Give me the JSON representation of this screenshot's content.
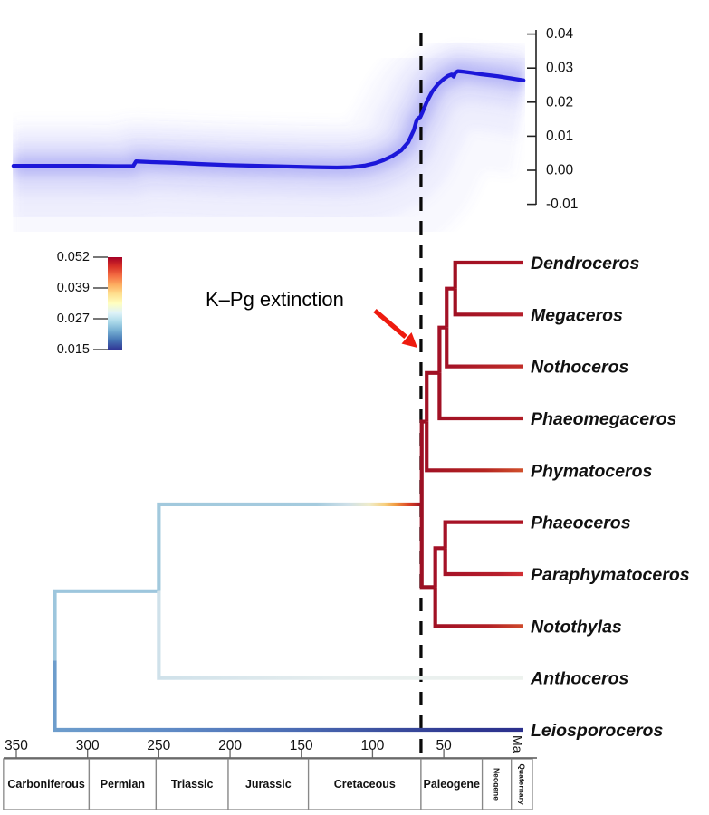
{
  "annotations": {
    "kpg_label": "K–Pg extinction",
    "kpg_time_ma": 66,
    "ma_unit_label": "Ma"
  },
  "chart_data": [
    {
      "type": "area",
      "id": "rate_through_time",
      "title": "",
      "x_unit": "Ma",
      "x": [
        352,
        330,
        300,
        280,
        268,
        266,
        255,
        240,
        220,
        200,
        180,
        160,
        140,
        125,
        115,
        105,
        98,
        92,
        86,
        80,
        75,
        71,
        69,
        67.5,
        66.5,
        65,
        62,
        58,
        54,
        50,
        47,
        44.5,
        43,
        42,
        40,
        36,
        30,
        24,
        18,
        12,
        6,
        0,
        -6
      ],
      "rate": [
        0.0013,
        0.0013,
        0.0013,
        0.0012,
        0.0012,
        0.0026,
        0.0024,
        0.0022,
        0.0018,
        0.0015,
        0.0013,
        0.0011,
        0.0009,
        0.0008,
        0.0009,
        0.0014,
        0.0021,
        0.003,
        0.0042,
        0.0058,
        0.0082,
        0.0118,
        0.0148,
        0.0154,
        0.0156,
        0.017,
        0.02,
        0.0232,
        0.0253,
        0.0268,
        0.0277,
        0.0281,
        0.0275,
        0.0286,
        0.0291,
        0.0289,
        0.0286,
        0.0282,
        0.0279,
        0.0276,
        0.0272,
        0.0268,
        0.0264
      ],
      "yticks": [
        "0.04",
        "0.03",
        "0.02",
        "0.01",
        "0.00",
        "-0.01"
      ],
      "ylim": [
        -0.01,
        0.04
      ],
      "line_color": "#1c17d9",
      "cloud_color": "#7d7df0"
    },
    {
      "type": "tree",
      "id": "phylogeny",
      "tips": [
        {
          "name": "Dendroceros"
        },
        {
          "name": "Megaceros"
        },
        {
          "name": "Nothoceros"
        },
        {
          "name": "Phaeomegaceros"
        },
        {
          "name": "Phymatoceros"
        },
        {
          "name": "Phaeoceros"
        },
        {
          "name": "Paraphymatoceros"
        },
        {
          "name": "Notothylas"
        },
        {
          "name": "Anthoceros"
        },
        {
          "name": "Leiosporoceros"
        }
      ],
      "nodes": [
        {
          "id": "root",
          "t": 323,
          "children": [
            "n8",
            "Leiosporoceros"
          ]
        },
        {
          "id": "n8",
          "t": 250,
          "children": [
            "n5",
            "Anthoceros"
          ]
        },
        {
          "id": "n5",
          "t": 65.5,
          "children": [
            "n4",
            "n7"
          ]
        },
        {
          "id": "n4",
          "t": 62,
          "children": [
            "n3",
            "Phymatoceros"
          ]
        },
        {
          "id": "n3",
          "t": 53,
          "children": [
            "n2",
            "Phaeomegaceros"
          ]
        },
        {
          "id": "n2",
          "t": 48,
          "children": [
            "n1",
            "Nothoceros"
          ]
        },
        {
          "id": "n1",
          "t": 42,
          "children": [
            "Dendroceros",
            "Megaceros"
          ]
        },
        {
          "id": "n7",
          "t": 56,
          "children": [
            "n6",
            "Notothylas"
          ]
        },
        {
          "id": "n6",
          "t": 49,
          "children": [
            "Phaeoceros",
            "Paraphymatoceros"
          ]
        }
      ],
      "edge_colors": {
        "root>n8": [
          [
            "#9dc6dd",
            0
          ]
        ],
        "root>Leiosporoceros": [
          [
            "#6d9dcc",
            0
          ],
          [
            "#5f8ac5",
            0.25
          ],
          [
            "#4c6db4",
            0.5
          ],
          [
            "#3c509f",
            0.7
          ],
          [
            "#303b93",
            0.85
          ],
          [
            "#2b2f8c",
            1
          ]
        ],
        "n8>n5": [
          [
            "#a2c9dd",
            0
          ],
          [
            "#a5cbde",
            0.6
          ],
          [
            "#cfe0e8",
            0.72
          ],
          [
            "#efeccb",
            0.8
          ],
          [
            "#f7cf7e",
            0.86
          ],
          [
            "#f09b42",
            0.9
          ],
          [
            "#dc4527",
            0.95
          ],
          [
            "#9c1023",
            1
          ]
        ],
        "n8>Anthoceros": [
          [
            "#cfe1ea",
            0
          ],
          [
            "#e7eeee",
            0.5
          ],
          [
            "#edf2ee",
            1
          ]
        ],
        "n5>n4": [
          [
            "#9c1023",
            0
          ]
        ],
        "n5>n7": [
          [
            "#9c1023",
            0
          ]
        ],
        "n4>n3": [
          [
            "#a11124",
            0
          ]
        ],
        "n4>Phymatoceros": [
          [
            "#a11124",
            0
          ],
          [
            "#b52420",
            0.6
          ],
          [
            "#d1512c",
            1
          ]
        ],
        "n3>n2": [
          [
            "#a31126",
            0
          ]
        ],
        "n3>Phaeomegaceros": [
          [
            "#a11124",
            0
          ],
          [
            "#b01d26",
            1
          ]
        ],
        "n2>n1": [
          [
            "#a31126",
            0
          ]
        ],
        "n2>Nothoceros": [
          [
            "#a31126",
            0
          ],
          [
            "#c22e28",
            1
          ]
        ],
        "n1>Dendroceros": [
          [
            "#a01022",
            0
          ],
          [
            "#ad1526",
            1
          ]
        ],
        "n1>Megaceros": [
          [
            "#a01022",
            0
          ],
          [
            "#b51f2b",
            1
          ]
        ],
        "n7>n6": [
          [
            "#a31126",
            0
          ]
        ],
        "n7>Notothylas": [
          [
            "#a11124",
            0
          ],
          [
            "#b22026",
            0.6
          ],
          [
            "#cf4a2b",
            1
          ]
        ],
        "n6>Phaeoceros": [
          [
            "#a51227",
            0
          ],
          [
            "#ad1322",
            1
          ]
        ],
        "n6>Paraphymatoceros": [
          [
            "#a51227",
            0
          ],
          [
            "#b81f2c",
            0.7
          ],
          [
            "#d23034",
            1
          ]
        ]
      },
      "legend": {
        "ticks": [
          "0.052",
          "0.039",
          "0.027",
          "0.015"
        ],
        "colormap_top_to_bottom": [
          "#a50026",
          "#d73027",
          "#f46d43",
          "#fdae61",
          "#fee090",
          "#ffffbf",
          "#e0f3f8",
          "#abd9e9",
          "#74add1",
          "#4575b4",
          "#313695"
        ]
      }
    },
    {
      "type": "table",
      "id": "geologic_timescale",
      "axis_ticks": [
        350,
        300,
        250,
        200,
        150,
        100,
        50
      ],
      "unit": "Ma",
      "periods": [
        {
          "name": "Carboniferous",
          "from": 359,
          "to": 298.9,
          "rotated": false
        },
        {
          "name": "Permian",
          "from": 298.9,
          "to": 251.9,
          "rotated": false
        },
        {
          "name": "Triassic",
          "from": 251.9,
          "to": 201.3,
          "rotated": false
        },
        {
          "name": "Jurassic",
          "from": 201.3,
          "to": 145,
          "rotated": false
        },
        {
          "name": "Cretaceous",
          "from": 145,
          "to": 66,
          "rotated": false
        },
        {
          "name": "Paleogene",
          "from": 66,
          "to": 23,
          "rotated": false
        },
        {
          "name": "Neogene",
          "from": 23,
          "to": 2.6,
          "rotated": true
        },
        {
          "name": "Quaternary",
          "from": 2.6,
          "to": 0,
          "rotated": true
        }
      ]
    }
  ]
}
